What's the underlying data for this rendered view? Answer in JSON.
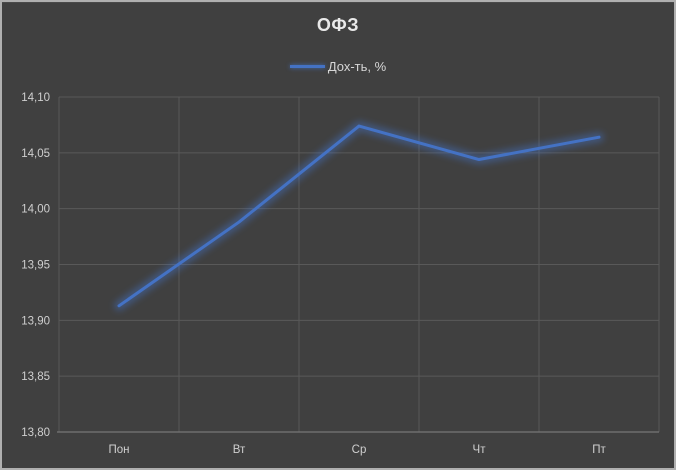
{
  "window": {
    "background_color": "#404040",
    "border_color": "#b0b0b0"
  },
  "chart_data": {
    "type": "line",
    "title": "ОФЗ",
    "categories": [
      "Пон",
      "Вт",
      "Ср",
      "Чт",
      "Пт"
    ],
    "series": [
      {
        "name": "Дох-ть, %",
        "values": [
          13.913,
          13.988,
          14.074,
          14.044,
          14.064
        ],
        "color": "#4472c4",
        "glow": true,
        "line_width": 3
      }
    ],
    "ylim": [
      13.8,
      14.1
    ],
    "ytick_labels": [
      "13,80",
      "13,85",
      "13,90",
      "13,95",
      "14,00",
      "14,05",
      "14,10"
    ],
    "ytick_values": [
      13.8,
      13.85,
      13.9,
      13.95,
      14.0,
      14.05,
      14.1
    ],
    "xlabel": "",
    "ylabel": "",
    "grid": true,
    "legend_position": "top",
    "gridline_color": "#595959",
    "axis_line_color": "#767676",
    "tick_label_color": "#cfcfcf",
    "title_color": "#e9e9e9"
  }
}
